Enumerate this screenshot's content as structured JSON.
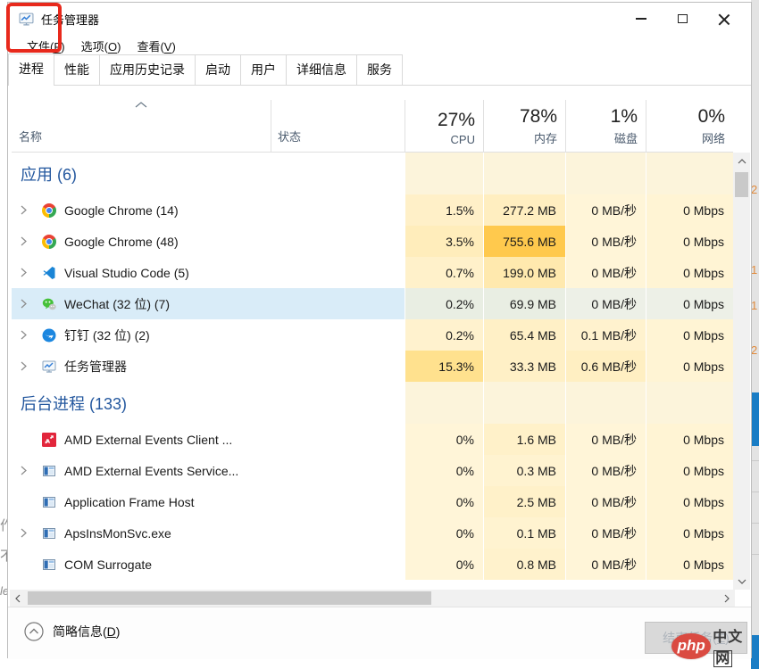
{
  "window": {
    "title": "任务管理器",
    "controls": [
      "minimize",
      "maximize",
      "close"
    ]
  },
  "menu": {
    "items": [
      {
        "pre": "文件(",
        "key": "F",
        "post": ")"
      },
      {
        "pre": "选项(",
        "key": "O",
        "post": ")"
      },
      {
        "pre": "查看(",
        "key": "V",
        "post": ")"
      }
    ]
  },
  "tabs": {
    "items": [
      {
        "label": "进程",
        "active": true,
        "annotated": true
      },
      {
        "label": "性能",
        "active": false
      },
      {
        "label": "应用历史记录",
        "active": false
      },
      {
        "label": "启动",
        "active": false
      },
      {
        "label": "用户",
        "active": false
      },
      {
        "label": "详细信息",
        "active": false
      },
      {
        "label": "服务",
        "active": false
      }
    ]
  },
  "table": {
    "columns": {
      "name": "名称",
      "status": "状态",
      "cpu": {
        "value": "27%",
        "label": "CPU"
      },
      "memory": {
        "value": "78%",
        "label": "内存"
      },
      "disk": {
        "value": "1%",
        "label": "磁盘"
      },
      "network": {
        "value": "0%",
        "label": "网络"
      }
    },
    "rows": [
      {
        "type": "section",
        "name": "应用 (6)",
        "cpu": "",
        "mem": "",
        "disk": "",
        "net": "",
        "heat": [
          "#FCF4DB",
          "#FCF4DB",
          "#FCF4DB",
          "#FCF4DB"
        ]
      },
      {
        "type": "process",
        "name": "Google Chrome (14)",
        "icon": "chrome",
        "expandable": true,
        "selected": false,
        "cpu": "1.5%",
        "mem": "277.2 MB",
        "disk": "0 MB/秒",
        "net": "0 Mbps",
        "heat": [
          "#FFF0C8",
          "#FFEEC0",
          "#FFF5D8",
          "#FFF4D4"
        ]
      },
      {
        "type": "process",
        "name": "Google Chrome (48)",
        "icon": "chrome",
        "expandable": true,
        "selected": false,
        "cpu": "3.5%",
        "mem": "755.6 MB",
        "disk": "0 MB/秒",
        "net": "0 Mbps",
        "heat": [
          "#FFEDBB",
          "#FFC94D",
          "#FFF5D8",
          "#FFF4D4"
        ]
      },
      {
        "type": "process",
        "name": "Visual Studio Code (5)",
        "icon": "vscode",
        "expandable": true,
        "selected": false,
        "cpu": "0.7%",
        "mem": "199.0 MB",
        "disk": "0 MB/秒",
        "net": "0 Mbps",
        "heat": [
          "#FFF1CA",
          "#FFE9AE",
          "#FFF5D8",
          "#FFF4D4"
        ]
      },
      {
        "type": "process",
        "name": "WeChat (32 位) (7)",
        "icon": "wechat",
        "expandable": true,
        "selected": true,
        "cpu": "0.2%",
        "mem": "69.9 MB",
        "disk": "0 MB/秒",
        "net": "0 Mbps",
        "heat": [
          "#E9EEE3",
          "#E9EEE3",
          "#EDF0E7",
          "#EDF0E7"
        ]
      },
      {
        "type": "process",
        "name": "钉钉 (32 位) (2)",
        "icon": "dingtalk",
        "expandable": true,
        "selected": false,
        "cpu": "0.2%",
        "mem": "65.4 MB",
        "disk": "0.1 MB/秒",
        "net": "0 Mbps",
        "heat": [
          "#FFF2CE",
          "#FFF0C6",
          "#FFF2CE",
          "#FFF4D4"
        ]
      },
      {
        "type": "process",
        "name": "任务管理器",
        "icon": "taskmgr",
        "expandable": true,
        "selected": false,
        "cpu": "15.3%",
        "mem": "33.3 MB",
        "disk": "0.6 MB/秒",
        "net": "0 Mbps",
        "heat": [
          "#FFE18E",
          "#FFF0C6",
          "#FFEFC2",
          "#FFF4D4"
        ]
      },
      {
        "type": "section",
        "name": "后台进程 (133)",
        "cpu": "",
        "mem": "",
        "disk": "",
        "net": "",
        "heat": [
          "#FCF4DB",
          "#FCF4DB",
          "#FCF4DB",
          "#FCF4DB"
        ]
      },
      {
        "type": "process",
        "name": "AMD External Events Client ...",
        "icon": "amd",
        "expandable": false,
        "selected": false,
        "cpu": "0%",
        "mem": "1.6 MB",
        "disk": "0 MB/秒",
        "net": "0 Mbps",
        "heat": [
          "#FFF5D8",
          "#FFF1C9",
          "#FFF5D8",
          "#FFF4D4"
        ]
      },
      {
        "type": "process",
        "name": "AMD External Events Service...",
        "icon": "winapp",
        "expandable": true,
        "selected": false,
        "cpu": "0%",
        "mem": "0.3 MB",
        "disk": "0 MB/秒",
        "net": "0 Mbps",
        "heat": [
          "#FFF5D8",
          "#FFF3D0",
          "#FFF5D8",
          "#FFF4D4"
        ]
      },
      {
        "type": "process",
        "name": "Application Frame Host",
        "icon": "winapp",
        "expandable": false,
        "selected": false,
        "cpu": "0%",
        "mem": "2.5 MB",
        "disk": "0 MB/秒",
        "net": "0 Mbps",
        "heat": [
          "#FFF5D8",
          "#FFF1C9",
          "#FFF5D8",
          "#FFF4D4"
        ]
      },
      {
        "type": "process",
        "name": "ApsInsMonSvc.exe",
        "icon": "winapp",
        "expandable": true,
        "selected": false,
        "cpu": "0%",
        "mem": "0.1 MB",
        "disk": "0 MB/秒",
        "net": "0 Mbps",
        "heat": [
          "#FFF5D8",
          "#FFF3D0",
          "#FFF5D8",
          "#FFF4D4"
        ]
      },
      {
        "type": "process",
        "name": "COM Surrogate",
        "icon": "winapp",
        "expandable": false,
        "selected": false,
        "cpu": "0%",
        "mem": "0.8 MB",
        "disk": "0 MB/秒",
        "net": "0 Mbps",
        "heat": [
          "#FFF5D8",
          "#FFF2CC",
          "#FFF5D8",
          "#FFF4D4"
        ]
      }
    ]
  },
  "statusbar": {
    "details_toggle": {
      "pre": "简略信息(",
      "key": "D",
      "post": ")"
    },
    "end_task_button": {
      "pre": "结束任务(",
      "key": "E",
      "post": ")"
    }
  },
  "watermark": {
    "logo": "php",
    "suffix": "中文",
    "boxed": "网"
  },
  "background": {
    "left_fragments": [
      "作",
      "不"
    ],
    "left_italic_fragment": "le"
  },
  "colors": {
    "annotation_red": "#e8291c",
    "section_blue": "#23579e",
    "selected_row": "#d9ecf8",
    "heat_max": "#FFC94D",
    "watermark_red": "#da4a41"
  }
}
